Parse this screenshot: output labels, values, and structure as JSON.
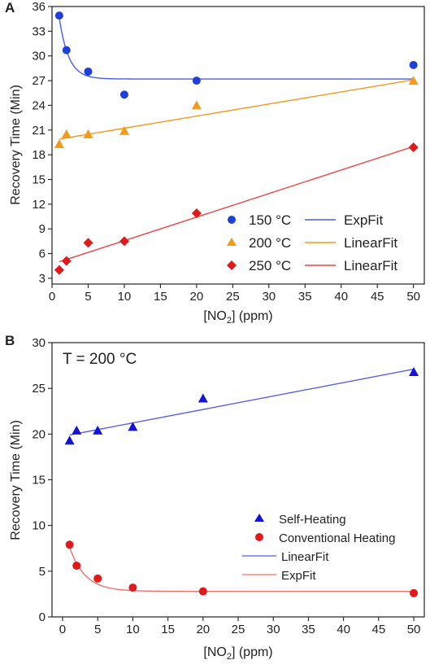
{
  "chart_data": [
    {
      "panel_label": "A",
      "type": "scatter",
      "xlabel_main": "[NO",
      "xlabel_sub": "2",
      "xlabel_tail": "] (ppm)",
      "ylabel": "Recovery Time (Min)",
      "xlim": [
        0,
        51.5
      ],
      "ylim": [
        2.3,
        36
      ],
      "xticks": [
        "0",
        "5",
        "10",
        "15",
        "20",
        "25",
        "30",
        "35",
        "40",
        "45",
        "50"
      ],
      "yticks": [
        "3",
        "6",
        "9",
        "12",
        "15",
        "18",
        "21",
        "24",
        "27",
        "30",
        "33",
        "36"
      ],
      "legend_position": "lower-right",
      "series": [
        {
          "name": "150 °C",
          "marker": "circle",
          "color": "#1f3fd9",
          "x": [
            1,
            2,
            5,
            10,
            20,
            50
          ],
          "y": [
            34.9,
            30.7,
            28.1,
            25.3,
            27.0,
            28.9
          ],
          "fit_name": "ExpFit",
          "fit_color": "#4a5ee6",
          "fit": {
            "kind": "exp",
            "y0": 27.2,
            "A": 16.0,
            "t": 1.3
          }
        },
        {
          "name": "200 °C",
          "marker": "triangle",
          "color": "#f39a1c",
          "x": [
            1,
            2,
            5,
            10,
            20,
            50
          ],
          "y": [
            19.3,
            20.5,
            20.5,
            20.9,
            24.0,
            27.0
          ],
          "fit_name": "LinearFit",
          "fit_color": "#f39a1c",
          "fit": {
            "kind": "linear",
            "x0": 1,
            "y0": 19.9,
            "x1": 50,
            "y1": 27.1
          }
        },
        {
          "name": "250 °C",
          "marker": "diamond",
          "color": "#e01a1a",
          "x": [
            1,
            2,
            5,
            10,
            20,
            50
          ],
          "y": [
            4.0,
            5.1,
            7.3,
            7.5,
            10.9,
            18.9
          ],
          "fit_name": "LinearFit",
          "fit_color": "#e84545",
          "fit": {
            "kind": "linear",
            "x0": 1,
            "y0": 5.0,
            "x1": 50,
            "y1": 19.0
          }
        }
      ]
    },
    {
      "panel_label": "B",
      "type": "scatter",
      "annotation": "T = 200 °C",
      "xlabel_main": "[NO",
      "xlabel_sub": "2",
      "xlabel_tail": "] (ppm)",
      "ylabel": "Recovery Time (Min)",
      "xlim": [
        -1.5,
        51.5
      ],
      "ylim": [
        0,
        30
      ],
      "xticks": [
        "0",
        "5",
        "10",
        "15",
        "20",
        "25",
        "30",
        "35",
        "40",
        "45",
        "50"
      ],
      "yticks": [
        "0",
        "5",
        "10",
        "15",
        "20",
        "25",
        "30"
      ],
      "legend_position": "lower-right",
      "series": [
        {
          "name": "Self-Heating",
          "marker": "triangle",
          "color": "#1414d8",
          "x": [
            1,
            2,
            5,
            10,
            20,
            50
          ],
          "y": [
            19.3,
            20.4,
            20.4,
            20.8,
            23.9,
            26.8
          ],
          "fit_name": "LinearFit",
          "fit_color": "#5560e6",
          "fit": {
            "kind": "linear",
            "x0": 1,
            "y0": 19.9,
            "x1": 50,
            "y1": 27.1
          }
        },
        {
          "name": "Conventional Heating",
          "marker": "circle",
          "color": "#e01a1a",
          "x": [
            1,
            2,
            5,
            10,
            20,
            50
          ],
          "y": [
            7.9,
            5.6,
            4.2,
            3.2,
            2.8,
            2.6
          ],
          "fit_name": "ExpFit",
          "fit_color": "#f07070",
          "fit": {
            "kind": "exp",
            "y0": 2.8,
            "A": 7.6,
            "t": 2.2
          }
        }
      ]
    }
  ]
}
